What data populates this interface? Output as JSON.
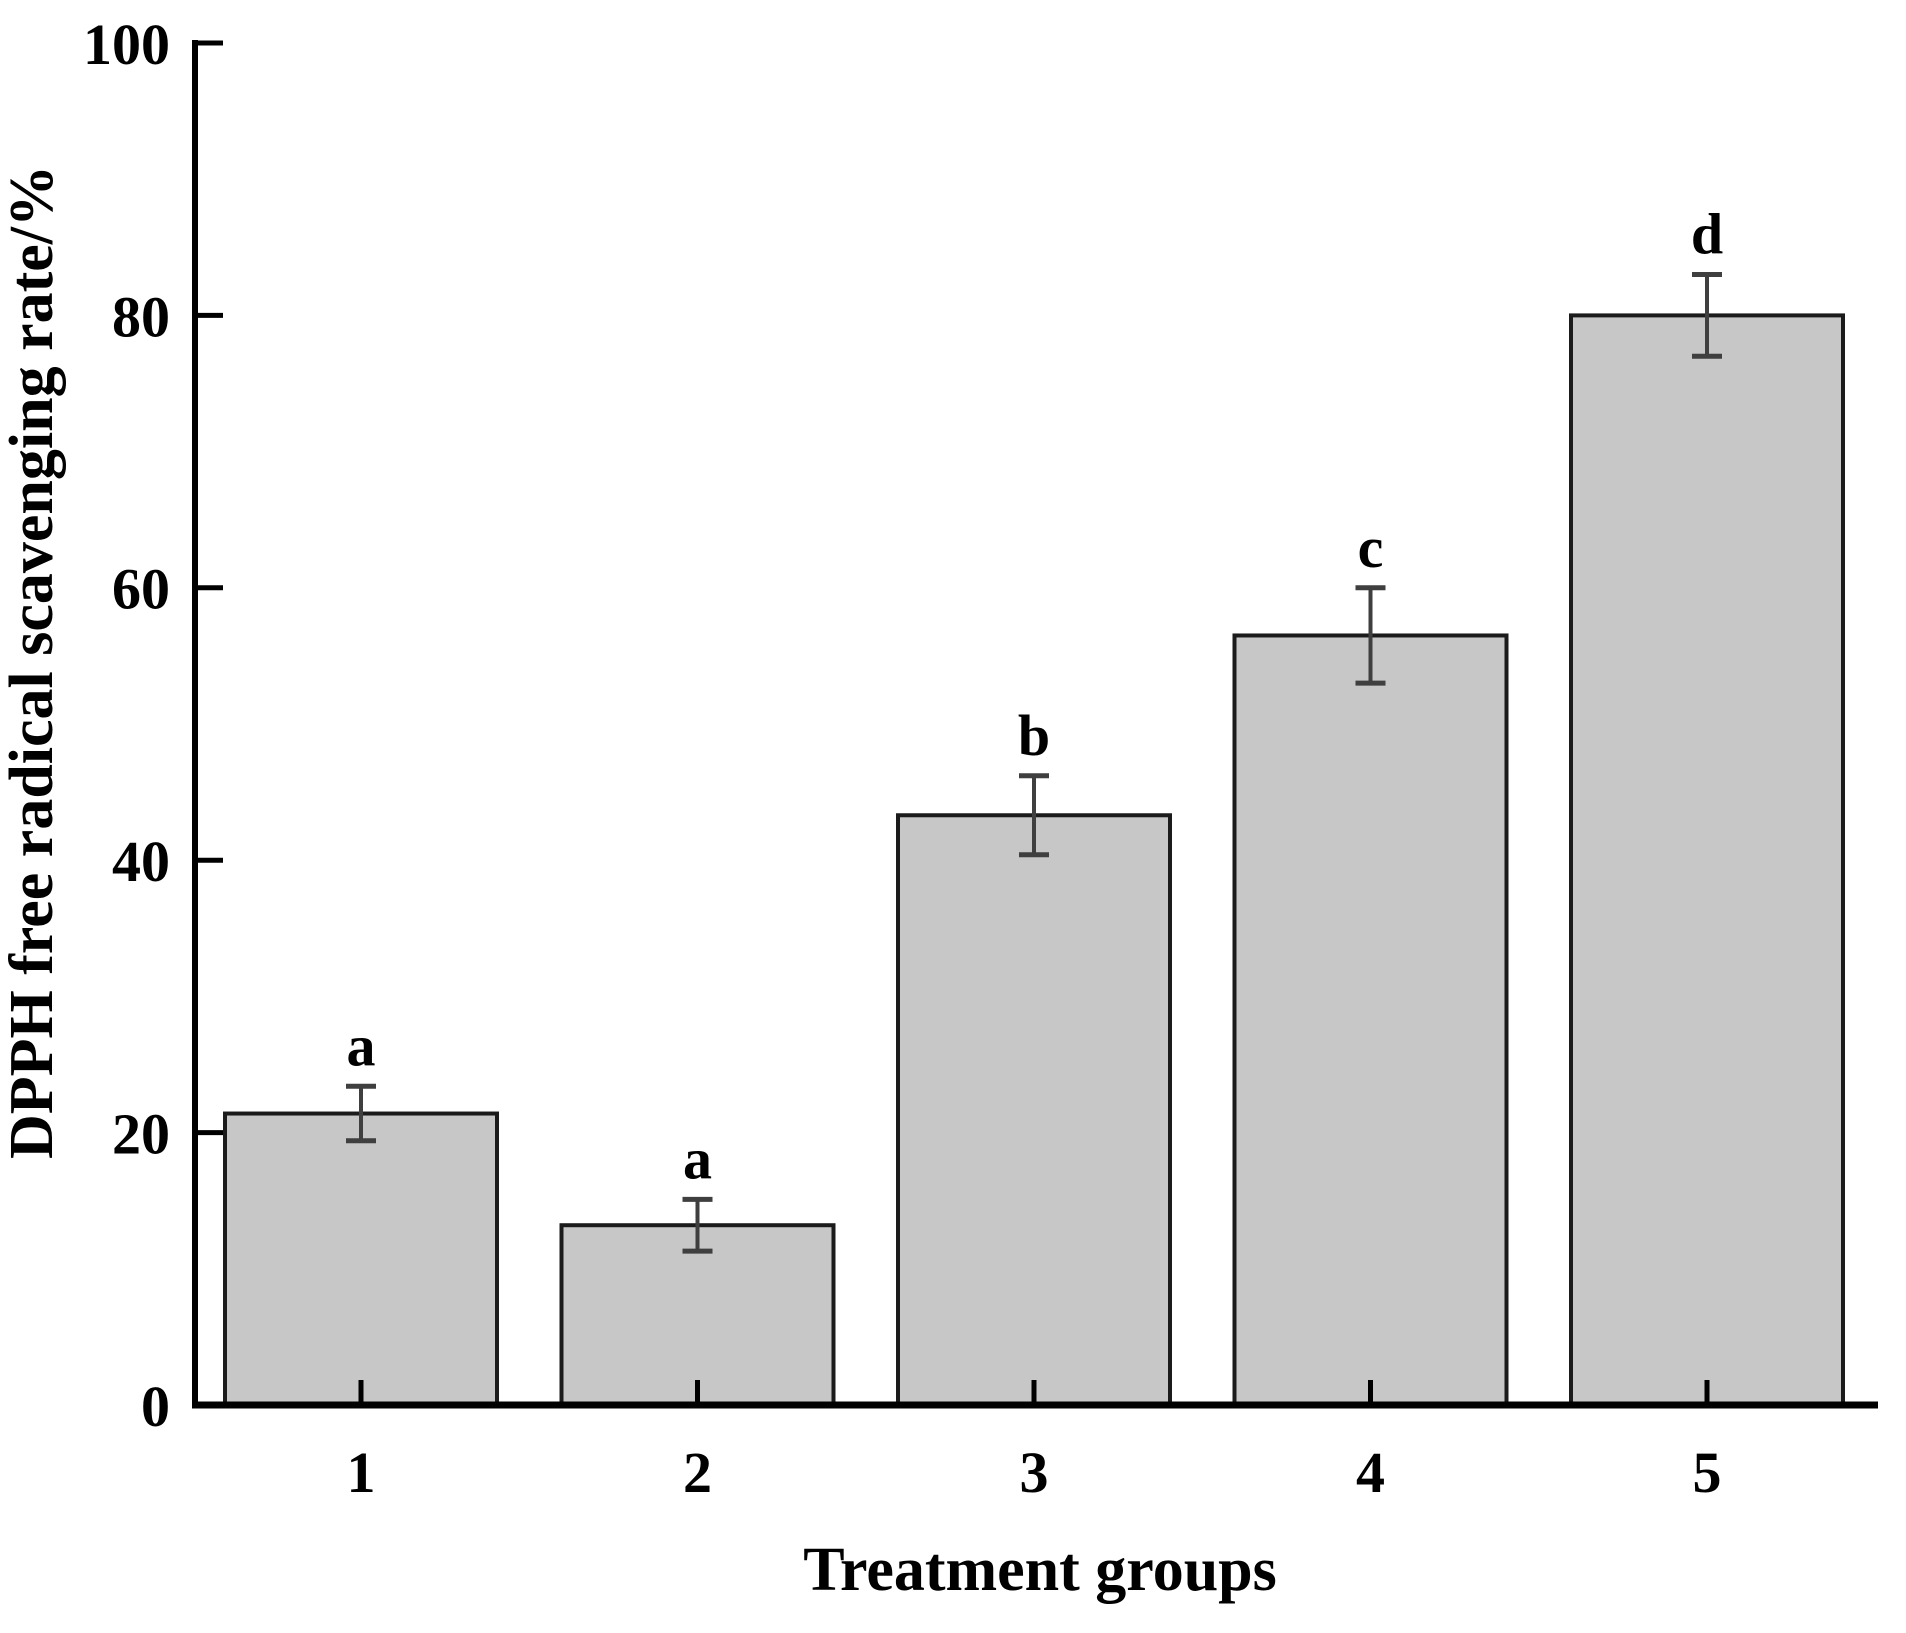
{
  "chart_data": {
    "type": "bar",
    "title": "",
    "xlabel": "Treatment groups",
    "ylabel": "DPPH free radical scavenging rate/%",
    "categories": [
      "1",
      "2",
      "3",
      "4",
      "5"
    ],
    "values": [
      21.4,
      13.2,
      43.3,
      56.5,
      80.0
    ],
    "errors": [
      2.0,
      1.9,
      2.9,
      3.5,
      3.0
    ],
    "sig_letters": [
      "a",
      "a",
      "b",
      "c",
      "d"
    ],
    "ylim": [
      0,
      100
    ],
    "yticks": [
      0,
      20,
      40,
      60,
      80,
      100
    ],
    "grid": false,
    "legend_position": "none",
    "bar_fill_color": "#c7c7c7",
    "bar_stroke_color": "#1b1b1b",
    "error_bar_color": "#3f3f3f",
    "axis_color": "#000000",
    "background_color": "#ffffff"
  }
}
